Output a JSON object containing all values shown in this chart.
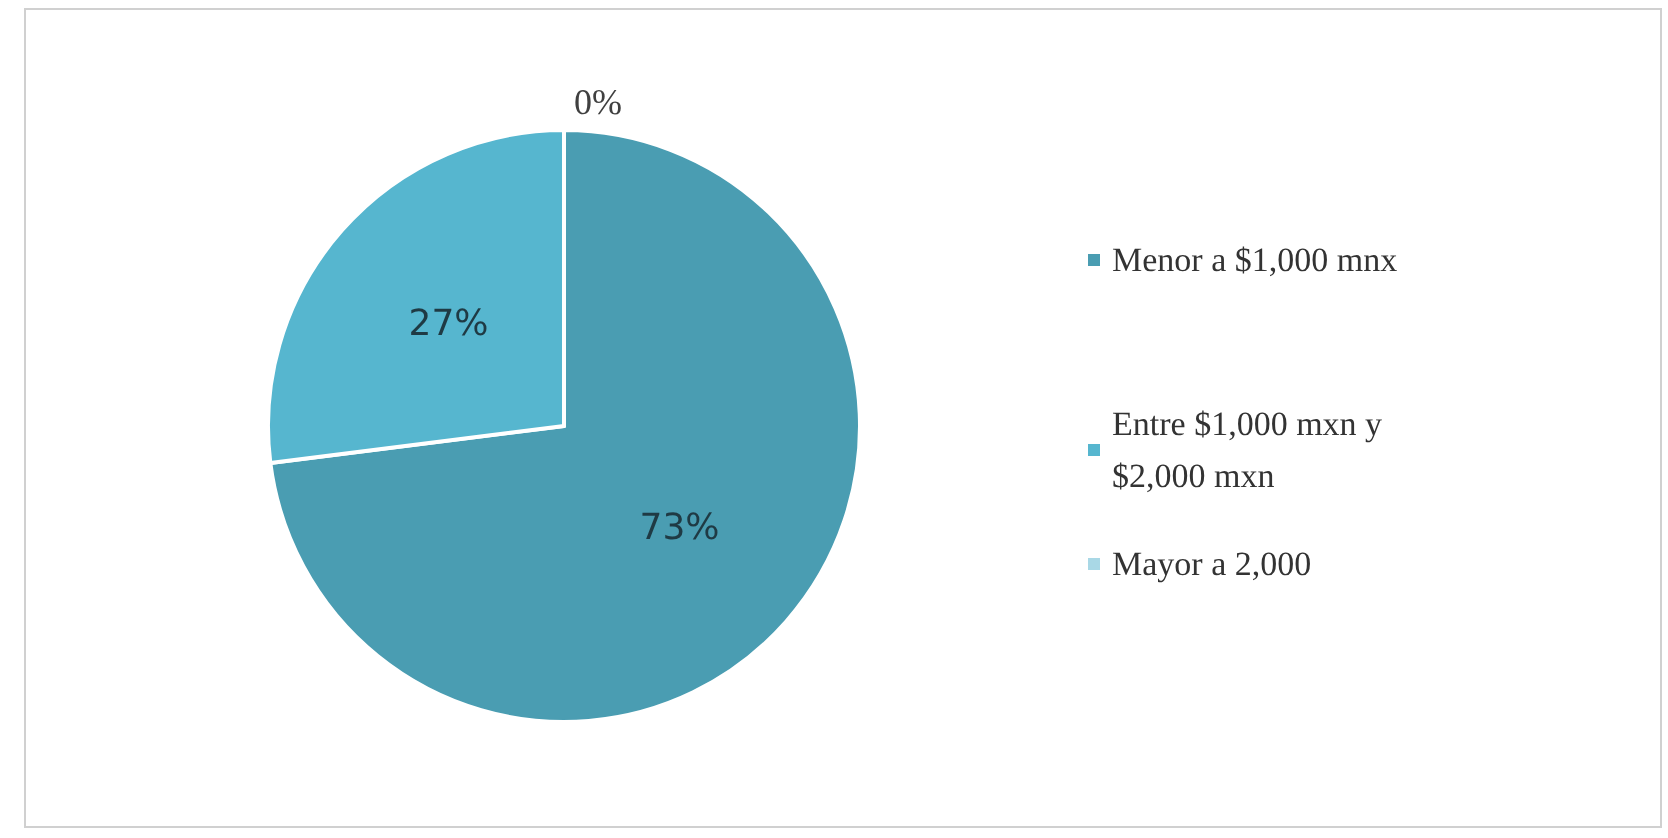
{
  "chart_data": {
    "type": "pie",
    "categories": [
      "Menor a $1,000 mnx",
      "Entre $1,000 mxn y $2,000 mxn",
      "Mayor a 2,000"
    ],
    "values": [
      73,
      27,
      0
    ],
    "value_labels": [
      "73%",
      "27%",
      "0%"
    ],
    "colors": [
      "#4a9db2",
      "#56b6cf",
      "#a9d8e6"
    ],
    "legend": "right"
  }
}
